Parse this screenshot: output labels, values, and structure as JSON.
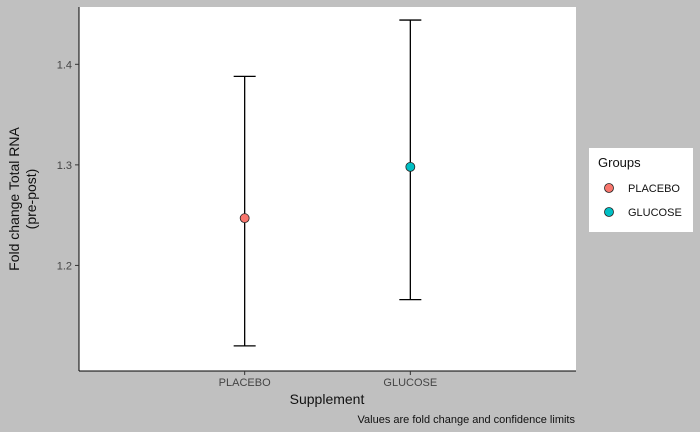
{
  "chart_data": {
    "type": "scatter",
    "categories": [
      "PLACEBO",
      "GLUCOSE"
    ],
    "series": [
      {
        "name": "PLACEBO",
        "color": "#f8766d",
        "x": "PLACEBO",
        "y": 1.247,
        "lower": 1.12,
        "upper": 1.388
      },
      {
        "name": "GLUCOSE",
        "color": "#00bfc4",
        "x": "GLUCOSE",
        "y": 1.298,
        "lower": 1.166,
        "upper": 1.444
      }
    ],
    "xlabel": "Supplement",
    "ylabel_line1": "Fold change Total RNA",
    "ylabel_line2": "(pre-post)",
    "yticks": [
      1.2,
      1.3,
      1.4
    ],
    "ytick_labels": [
      "1.2",
      "1.3",
      "1.4"
    ],
    "ylim": [
      1.095,
      1.457
    ],
    "grid": false,
    "legend": {
      "title": "Groups",
      "position": "right"
    },
    "caption": "Values are fold change and confidence limits"
  }
}
